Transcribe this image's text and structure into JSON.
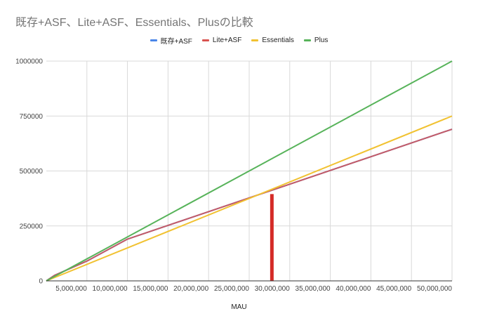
{
  "chart_data": {
    "type": "line",
    "title": "既存+ASF、Lite+ASF、Essentials、Plusの比較",
    "xlabel": "MAU",
    "ylabel": "",
    "xlim": [
      0,
      50000000
    ],
    "ylim": [
      0,
      1000000
    ],
    "x_ticks": [
      {
        "value": 5000000,
        "label": "5,000,000"
      },
      {
        "value": 10000000,
        "label": "10,000,000"
      },
      {
        "value": 15000000,
        "label": "15,000,000"
      },
      {
        "value": 20000000,
        "label": "20,000,000"
      },
      {
        "value": 25000000,
        "label": "25,000,000"
      },
      {
        "value": 30000000,
        "label": "30,000,000"
      },
      {
        "value": 35000000,
        "label": "35,000,000"
      },
      {
        "value": 40000000,
        "label": "40,000,000"
      },
      {
        "value": 45000000,
        "label": "45,000,000"
      },
      {
        "value": 50000000,
        "label": "50,000,000"
      }
    ],
    "y_ticks": [
      {
        "value": 0,
        "label": "0"
      },
      {
        "value": 250000,
        "label": "250000"
      },
      {
        "value": 500000,
        "label": "500000"
      },
      {
        "value": 750000,
        "label": "750000"
      },
      {
        "value": 1000000,
        "label": "1000000"
      }
    ],
    "grid": true,
    "legend_position": "top",
    "series": [
      {
        "name": "既存+ASF",
        "color": "#4a86e8",
        "points": [
          [
            0,
            0
          ],
          [
            1000000,
            25000
          ],
          [
            5000000,
            90000
          ],
          [
            10000000,
            190000
          ],
          [
            20000000,
            315000
          ],
          [
            30000000,
            440000
          ],
          [
            40000000,
            565000
          ],
          [
            50000000,
            690000
          ]
        ]
      },
      {
        "name": "Lite+ASF",
        "color": "#d95350",
        "points": [
          [
            0,
            0
          ],
          [
            1000000,
            25000
          ],
          [
            5000000,
            90000
          ],
          [
            10000000,
            190000
          ],
          [
            20000000,
            315000
          ],
          [
            30000000,
            440000
          ],
          [
            40000000,
            565000
          ],
          [
            50000000,
            690000
          ]
        ]
      },
      {
        "name": "Essentials",
        "color": "#f1c232",
        "points": [
          [
            0,
            0
          ],
          [
            50000000,
            750000
          ]
        ]
      },
      {
        "name": "Plus",
        "color": "#57b35a",
        "points": [
          [
            0,
            0
          ],
          [
            50000000,
            1000000
          ]
        ]
      }
    ],
    "annotations": [
      {
        "type": "vertical-bar",
        "x": 27800000,
        "y_from": 0,
        "y_to": 395000,
        "color": "#d42b27"
      }
    ]
  }
}
